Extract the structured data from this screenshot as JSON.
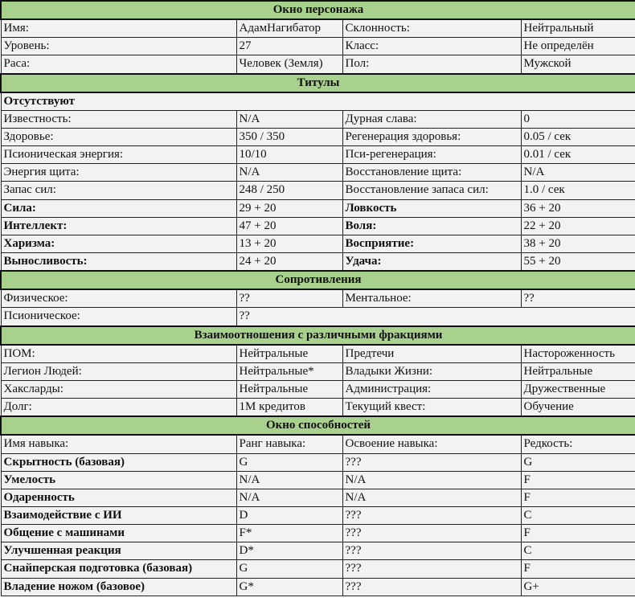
{
  "colors": {
    "header_bg": "#a9d18e",
    "cell_bg": "#f2f2f2",
    "border": "#222222"
  },
  "rows": [
    {
      "header": "Окно персонажа"
    },
    {
      "cells": [
        {
          "t": "Имя:"
        },
        {
          "t": "АдамНагибатор"
        },
        {
          "t": "Склонность:"
        },
        {
          "t": "Нейтральный"
        }
      ]
    },
    {
      "cells": [
        {
          "t": "Уровень:"
        },
        {
          "t": "27"
        },
        {
          "t": "Класс:"
        },
        {
          "t": "Не определён"
        }
      ]
    },
    {
      "cells": [
        {
          "t": "Раса:"
        },
        {
          "t": "Человек (Земля)"
        },
        {
          "t": "Пол:"
        },
        {
          "t": "Мужской"
        }
      ]
    },
    {
      "header": "Титулы"
    },
    {
      "cells": [
        {
          "t": "Отсутствуют",
          "b": true,
          "span": 4
        }
      ]
    },
    {
      "cells": [
        {
          "t": "Известность:"
        },
        {
          "t": "N/A"
        },
        {
          "t": "Дурная слава:"
        },
        {
          "t": "0"
        }
      ]
    },
    {
      "cells": [
        {
          "t": "Здоровье:"
        },
        {
          "t": "350 / 350"
        },
        {
          "t": "Регенерация здоровья:"
        },
        {
          "t": "0.05 / сек"
        }
      ]
    },
    {
      "cells": [
        {
          "t": "Псионическая энергия:"
        },
        {
          "t": "10/10"
        },
        {
          "t": "Пси-регенерация:"
        },
        {
          "t": "0.01 / сек"
        }
      ]
    },
    {
      "cells": [
        {
          "t": "Энергия щита:"
        },
        {
          "t": "N/A"
        },
        {
          "t": "Восстановление щита:"
        },
        {
          "t": "N/A"
        }
      ]
    },
    {
      "cells": [
        {
          "t": "Запас сил:"
        },
        {
          "t": "248 / 250"
        },
        {
          "t": "Восстановление запаса сил:"
        },
        {
          "t": "1.0 / сек"
        }
      ]
    },
    {
      "cells": [
        {
          "t": "Сила:",
          "b": true
        },
        {
          "t": "29 + 20"
        },
        {
          "t": "Ловкость",
          "b": true
        },
        {
          "t": "36 + 20"
        }
      ]
    },
    {
      "cells": [
        {
          "t": "Интеллект:",
          "b": true
        },
        {
          "t": "47 + 20"
        },
        {
          "t": "Воля:",
          "b": true
        },
        {
          "t": "22 + 20"
        }
      ]
    },
    {
      "cells": [
        {
          "t": "Харизма:",
          "b": true
        },
        {
          "t": "13 + 20"
        },
        {
          "t": "Восприятие:",
          "b": true
        },
        {
          "t": "38 + 20"
        }
      ]
    },
    {
      "cells": [
        {
          "t": "Выносливость:",
          "b": true
        },
        {
          "t": "24 + 20"
        },
        {
          "t": "Удача:",
          "b": true
        },
        {
          "t": "55 + 20"
        }
      ]
    },
    {
      "header": "Сопротивления"
    },
    {
      "cells": [
        {
          "t": "Физическое:"
        },
        {
          "t": "??"
        },
        {
          "t": "Ментальное:"
        },
        {
          "t": "??"
        }
      ]
    },
    {
      "cells": [
        {
          "t": "Псионическое:"
        },
        {
          "t": "??",
          "span": 3
        }
      ]
    },
    {
      "header": "Взаимоотношения с различными фракциями"
    },
    {
      "cells": [
        {
          "t": "ПОМ:"
        },
        {
          "t": "Нейтральные"
        },
        {
          "t": "Предтечи"
        },
        {
          "t": "Настороженность"
        }
      ]
    },
    {
      "cells": [
        {
          "t": "Легион Людей:"
        },
        {
          "t": "Нейтральные*"
        },
        {
          "t": "Владыки Жизни:"
        },
        {
          "t": "Нейтральные"
        }
      ]
    },
    {
      "cells": [
        {
          "t": "Хаксларды:"
        },
        {
          "t": "Нейтральные"
        },
        {
          "t": "Администрация:"
        },
        {
          "t": "Дружественные"
        }
      ]
    },
    {
      "cells": [
        {
          "t": "Долг:"
        },
        {
          "t": "1М кредитов"
        },
        {
          "t": "Текущий квест:"
        },
        {
          "t": "Обучение"
        }
      ]
    },
    {
      "header": "Окно способностей"
    },
    {
      "cells": [
        {
          "t": "Имя навыка:"
        },
        {
          "t": "Ранг навыка:"
        },
        {
          "t": "Освоение навыка:"
        },
        {
          "t": "Редкость:"
        }
      ]
    },
    {
      "cells": [
        {
          "t": "Скрытность (базовая)",
          "b": true
        },
        {
          "t": "G"
        },
        {
          "t": "???"
        },
        {
          "t": "G"
        }
      ]
    },
    {
      "cells": [
        {
          "t": "Умелость",
          "b": true
        },
        {
          "t": "N/A"
        },
        {
          "t": "N/A"
        },
        {
          "t": "F"
        }
      ]
    },
    {
      "cells": [
        {
          "t": "Одаренность",
          "b": true
        },
        {
          "t": "N/A"
        },
        {
          "t": "N/A"
        },
        {
          "t": "F"
        }
      ]
    },
    {
      "cells": [
        {
          "t": "Взаимодействие с ИИ",
          "b": true
        },
        {
          "t": "D"
        },
        {
          "t": "???"
        },
        {
          "t": "C"
        }
      ]
    },
    {
      "cells": [
        {
          "t": "Общение с машинами",
          "b": true
        },
        {
          "t": "F*"
        },
        {
          "t": "???"
        },
        {
          "t": "F"
        }
      ]
    },
    {
      "cells": [
        {
          "t": "Улучшенная реакция",
          "b": true
        },
        {
          "t": "D*"
        },
        {
          "t": "???"
        },
        {
          "t": "C"
        }
      ]
    },
    {
      "cells": [
        {
          "t": "Снайперская подготовка (базовая)",
          "b": true
        },
        {
          "t": "G"
        },
        {
          "t": "???"
        },
        {
          "t": "F"
        }
      ]
    },
    {
      "cells": [
        {
          "t": "Владение ножом (базовое)",
          "b": true
        },
        {
          "t": "G*"
        },
        {
          "t": "???"
        },
        {
          "t": "G+"
        }
      ]
    }
  ]
}
